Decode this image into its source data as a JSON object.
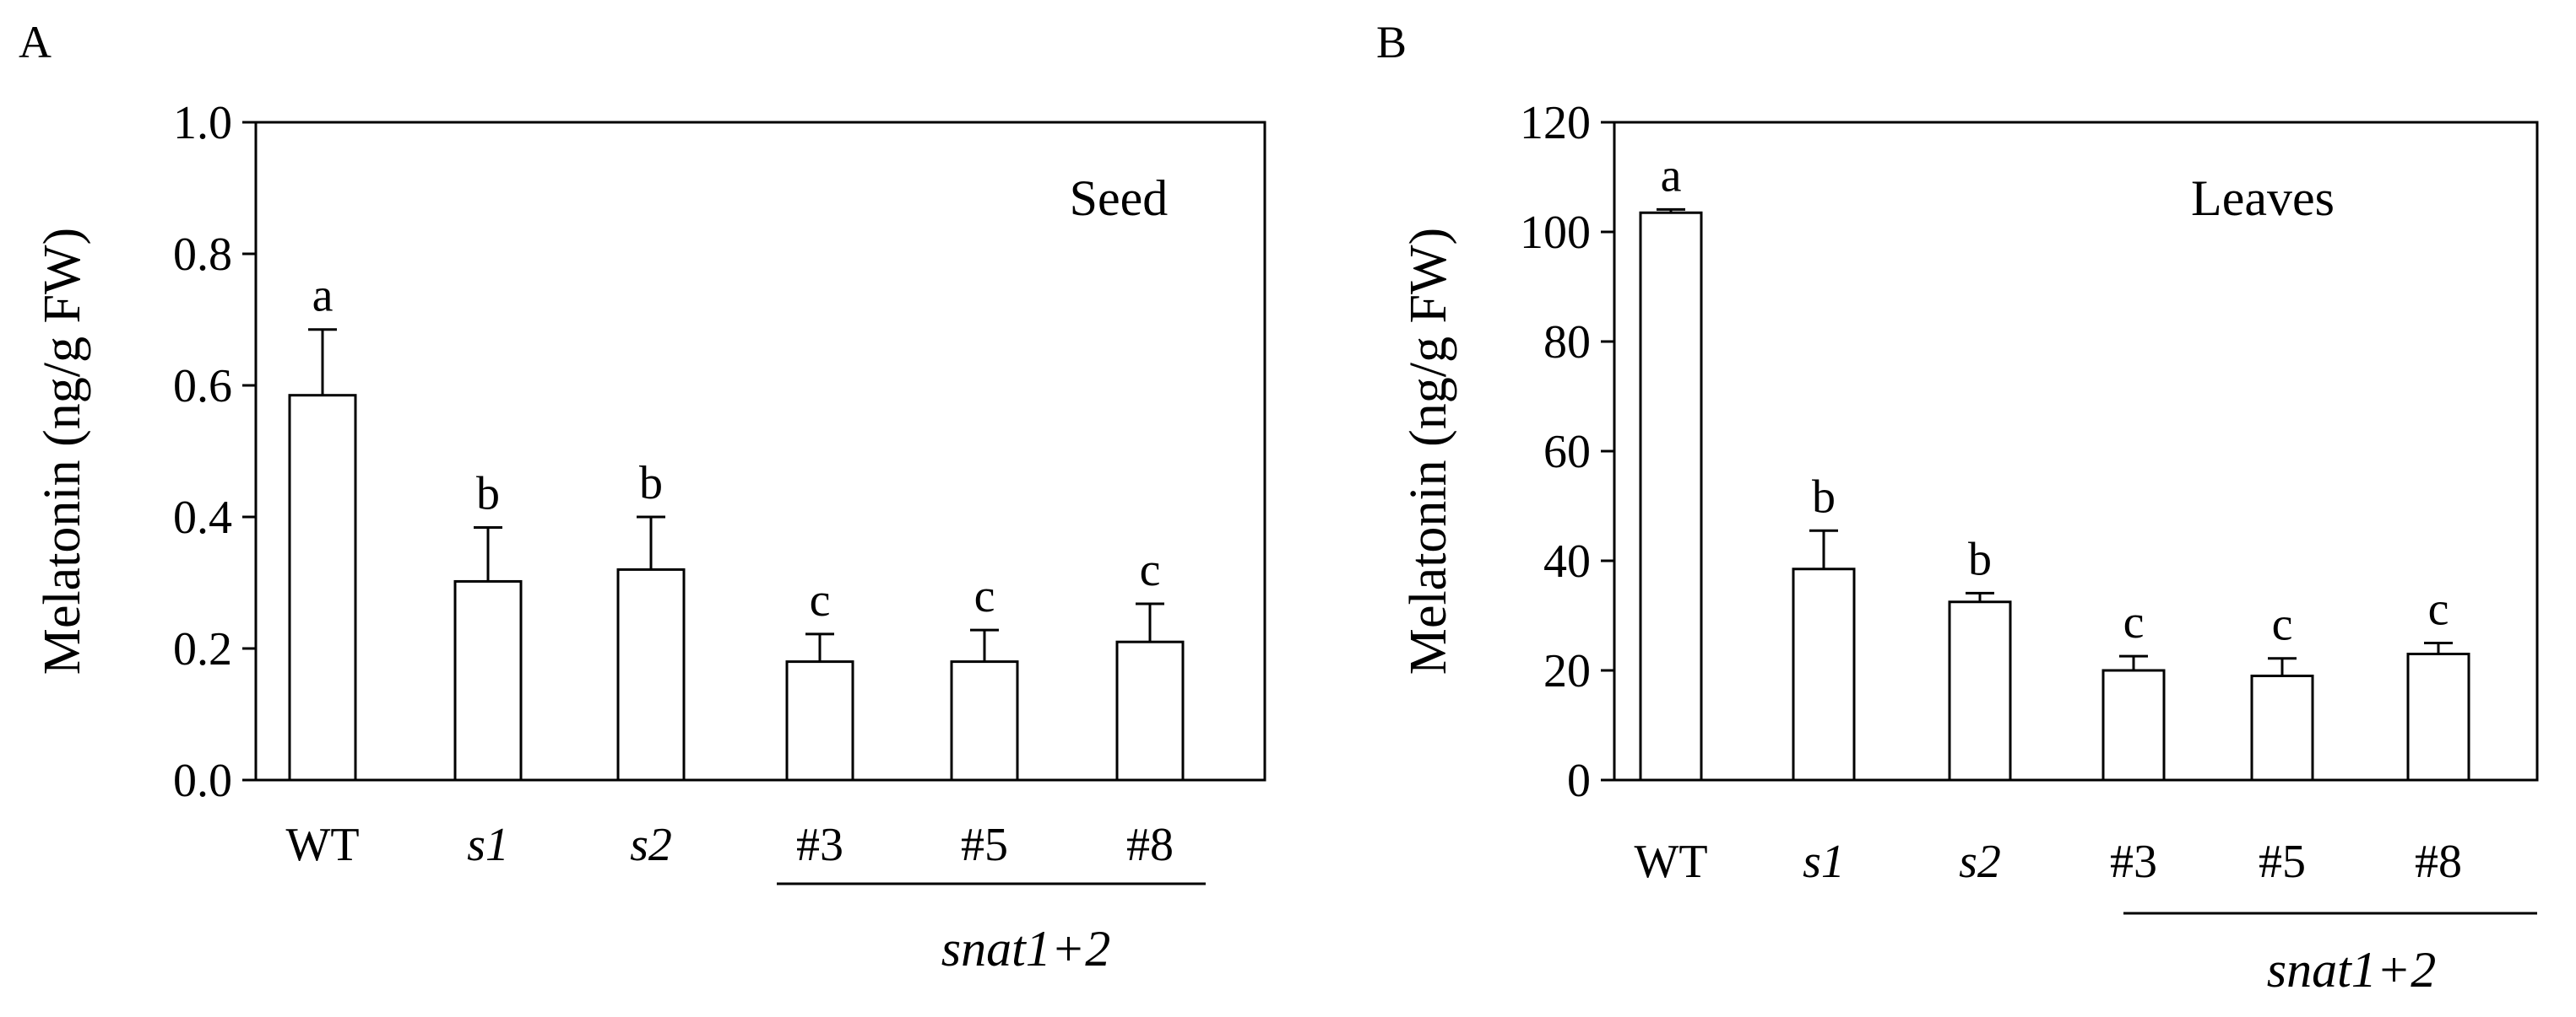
{
  "chart_data": [
    {
      "type": "bar",
      "panel": "A",
      "tissue": "Seed",
      "ylabel": "Melatonin (ng/g FW)",
      "ylim": [
        0,
        1.0
      ],
      "yticks": [
        "0.0",
        "0.2",
        "0.4",
        "0.6",
        "0.8",
        "1.0"
      ],
      "categories": [
        "WT",
        "s1",
        "s2",
        "#3",
        "#5",
        "#8"
      ],
      "italic_categories": [
        "s1",
        "s2"
      ],
      "values": [
        0.585,
        0.302,
        0.32,
        0.18,
        0.18,
        0.21
      ],
      "errors": [
        0.1,
        0.082,
        0.08,
        0.042,
        0.048,
        0.058
      ],
      "significance": [
        "a",
        "b",
        "b",
        "c",
        "c",
        "c"
      ],
      "group_label": "snat1+2",
      "grouped_categories": [
        "#3",
        "#5",
        "#8"
      ]
    },
    {
      "type": "bar",
      "panel": "B",
      "tissue": "Leaves",
      "ylabel": "Melatonin (ng/g FW)",
      "ylim": [
        0,
        120
      ],
      "yticks": [
        "0",
        "20",
        "40",
        "60",
        "80",
        "100",
        "120"
      ],
      "categories": [
        "WT",
        "s1",
        "s2",
        "#3",
        "#5",
        "#8"
      ],
      "italic_categories": [
        "s1",
        "s2"
      ],
      "values": [
        103.5,
        38.5,
        32.5,
        20.0,
        19.0,
        23.0
      ],
      "errors": [
        0.6,
        7.0,
        1.6,
        2.6,
        3.2,
        2.0
      ],
      "significance": [
        "a",
        "b",
        "b",
        "c",
        "c",
        "c"
      ],
      "group_label": "snat1+2",
      "grouped_categories": [
        "#3",
        "#5",
        "#8"
      ]
    }
  ]
}
